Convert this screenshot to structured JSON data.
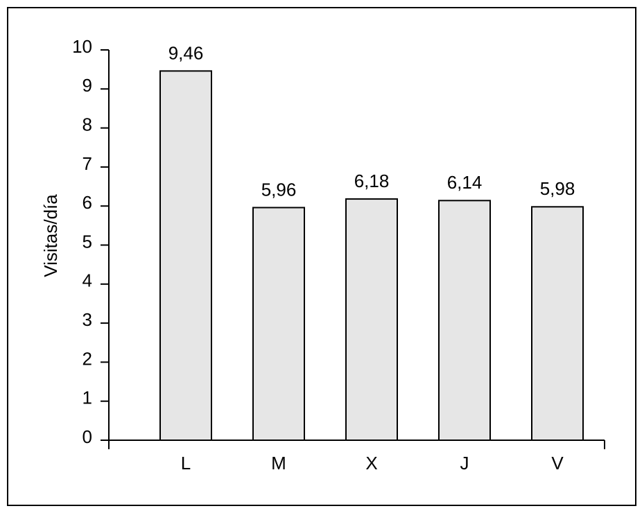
{
  "chart_data": {
    "type": "bar",
    "ylabel": "Visitas/día",
    "categories": [
      "L",
      "M",
      "X",
      "J",
      "V"
    ],
    "values": [
      9.46,
      5.96,
      6.18,
      6.14,
      5.98
    ],
    "value_labels": [
      "9,46",
      "5,96",
      "6,18",
      "6,14",
      "5,98"
    ],
    "color": "#e6e6e6",
    "ylim": [
      0,
      10
    ],
    "yticks": [
      0,
      1,
      2,
      3,
      4,
      5,
      6,
      7,
      8,
      9,
      10
    ],
    "grid": false
  }
}
